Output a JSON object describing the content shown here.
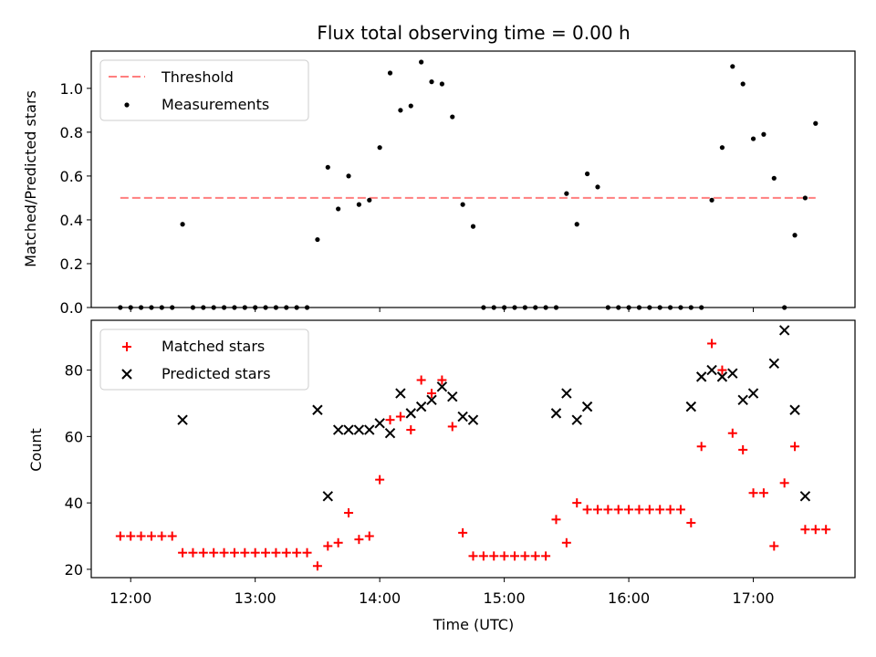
{
  "figure": {
    "title": "Flux total observing time = 0.00 h"
  },
  "chart_data": [
    {
      "type": "scatter",
      "panel": "top",
      "ylabel": "Matched/Predicted stars",
      "xlabel": "",
      "ylim": [
        0,
        1.17
      ],
      "xlim": [
        "11:41",
        "17:49"
      ],
      "yticks": [
        "0.0",
        "0.2",
        "0.4",
        "0.6",
        "0.8",
        "1.0"
      ],
      "ytick_values": [
        0,
        0.2,
        0.4,
        0.6,
        0.8,
        1.0
      ],
      "legend": {
        "position": "top-left",
        "entries": [
          "Threshold",
          "Measurements"
        ]
      },
      "series": [
        {
          "name": "Threshold",
          "style": "dashed-line",
          "color": "#ff7f7f",
          "x": [
            "11:55",
            "17:30"
          ],
          "y": [
            0.5,
            0.5
          ]
        },
        {
          "name": "Measurements",
          "style": "dot",
          "color": "#000000",
          "x": [
            "11:55",
            "12:00",
            "12:05",
            "12:10",
            "12:15",
            "12:20",
            "12:25",
            "12:30",
            "12:35",
            "12:40",
            "12:45",
            "12:50",
            "12:55",
            "13:00",
            "13:05",
            "13:10",
            "13:15",
            "13:20",
            "13:25",
            "13:30",
            "13:35",
            "13:40",
            "13:45",
            "13:50",
            "13:55",
            "14:00",
            "14:05",
            "14:10",
            "14:15",
            "14:20",
            "14:25",
            "14:30",
            "14:35",
            "14:40",
            "14:45",
            "14:50",
            "14:55",
            "15:00",
            "15:05",
            "15:10",
            "15:15",
            "15:20",
            "15:25",
            "15:30",
            "15:35",
            "15:40",
            "15:45",
            "15:50",
            "15:55",
            "16:00",
            "16:05",
            "16:10",
            "16:15",
            "16:20",
            "16:25",
            "16:30",
            "16:35",
            "16:40",
            "16:45",
            "16:50",
            "16:55",
            "17:00",
            "17:05",
            "17:10",
            "17:15",
            "17:20",
            "17:25",
            "17:30"
          ],
          "y": [
            0,
            0,
            0,
            0,
            0,
            0,
            0.38,
            0,
            0,
            0,
            0,
            0,
            0,
            0,
            0,
            0,
            0,
            0,
            0,
            0.31,
            0.64,
            0.45,
            0.6,
            0.47,
            0.49,
            0.73,
            1.07,
            0.9,
            0.92,
            1.12,
            1.03,
            1.02,
            0.87,
            0.47,
            0.37,
            0,
            0,
            0,
            0,
            0,
            0,
            0,
            0,
            0.52,
            0.38,
            0.61,
            0.55,
            0,
            0,
            0,
            0,
            0,
            0,
            0,
            0,
            0,
            0,
            0.49,
            0.73,
            1.1,
            1.02,
            0.77,
            0.79,
            0.59,
            0,
            0.33,
            0.5,
            0.84
          ]
        }
      ]
    },
    {
      "type": "scatter",
      "panel": "bottom",
      "ylabel": "Count",
      "xlabel": "Time (UTC)",
      "ylim": [
        17.5,
        95
      ],
      "xlim": [
        "11:41",
        "17:49"
      ],
      "yticks": [
        "20",
        "40",
        "60",
        "80"
      ],
      "ytick_values": [
        20,
        40,
        60,
        80
      ],
      "xticks": [
        "12:00",
        "13:00",
        "14:00",
        "15:00",
        "16:00",
        "17:00"
      ],
      "legend": {
        "position": "top-left",
        "entries": [
          "Matched stars",
          "Predicted stars"
        ]
      },
      "series": [
        {
          "name": "Matched stars",
          "marker": "plus",
          "color": "#ff0000",
          "x": [
            "11:55",
            "12:00",
            "12:05",
            "12:10",
            "12:15",
            "12:20",
            "12:25",
            "12:30",
            "12:35",
            "12:40",
            "12:45",
            "12:50",
            "12:55",
            "13:00",
            "13:05",
            "13:10",
            "13:15",
            "13:20",
            "13:25",
            "13:30",
            "13:35",
            "13:40",
            "13:45",
            "13:50",
            "13:55",
            "14:00",
            "14:05",
            "14:10",
            "14:15",
            "14:20",
            "14:25",
            "14:30",
            "14:35",
            "14:40",
            "14:45",
            "14:50",
            "14:55",
            "15:00",
            "15:05",
            "15:10",
            "15:15",
            "15:20",
            "15:25",
            "15:30",
            "15:35",
            "15:40",
            "15:45",
            "15:50",
            "15:55",
            "16:00",
            "16:05",
            "16:10",
            "16:15",
            "16:20",
            "16:25",
            "16:30",
            "16:35",
            "16:40",
            "16:45",
            "16:50",
            "16:55",
            "17:00",
            "17:05",
            "17:10",
            "17:15",
            "17:20",
            "17:25",
            "17:30",
            "17:35"
          ],
          "y": [
            30,
            30,
            30,
            30,
            30,
            30,
            25,
            25,
            25,
            25,
            25,
            25,
            25,
            25,
            25,
            25,
            25,
            25,
            25,
            21,
            27,
            28,
            37,
            29,
            30,
            47,
            65,
            66,
            62,
            77,
            73,
            77,
            63,
            31,
            24,
            24,
            24,
            24,
            24,
            24,
            24,
            24,
            35,
            28,
            40,
            38,
            38,
            38,
            38,
            38,
            38,
            38,
            38,
            38,
            38,
            34,
            57,
            88,
            80,
            61,
            56,
            43,
            43,
            27,
            46,
            57,
            32,
            32,
            32
          ]
        },
        {
          "name": "Predicted stars",
          "marker": "x",
          "color": "#000000",
          "x": [
            "12:25",
            "13:30",
            "13:35",
            "13:40",
            "13:45",
            "13:50",
            "13:55",
            "14:00",
            "14:05",
            "14:10",
            "14:15",
            "14:20",
            "14:25",
            "14:30",
            "14:35",
            "14:40",
            "14:45",
            "15:25",
            "15:30",
            "15:35",
            "15:40",
            "16:30",
            "16:35",
            "16:40",
            "16:45",
            "16:50",
            "16:55",
            "17:00",
            "17:10",
            "17:15",
            "17:20",
            "17:25"
          ],
          "y": [
            65,
            68,
            42,
            62,
            62,
            62,
            62,
            64,
            61,
            73,
            67,
            69,
            71,
            75,
            72,
            66,
            65,
            67,
            73,
            65,
            69,
            69,
            78,
            80,
            78,
            79,
            71,
            73,
            82,
            92,
            68,
            42
          ]
        }
      ]
    }
  ]
}
